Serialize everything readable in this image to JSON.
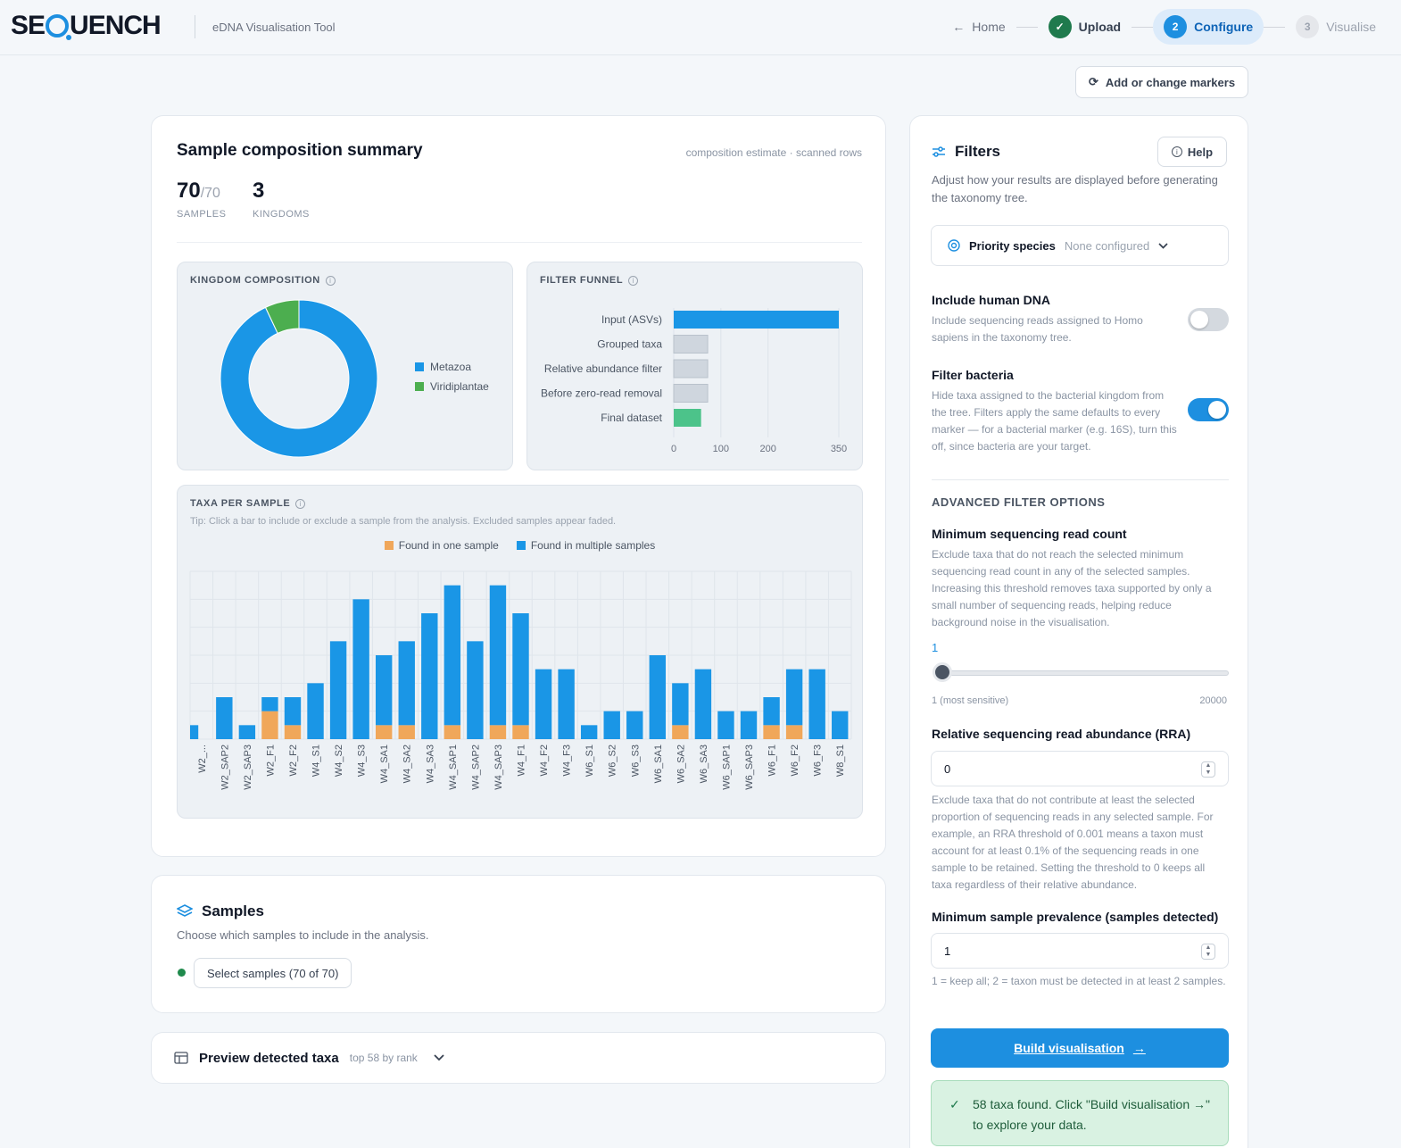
{
  "header": {
    "logo_left": "SE",
    "logo_right": "UENCH",
    "subtitle": "eDNA Visualisation Tool",
    "steps": {
      "home": "Home",
      "upload_num": "✓",
      "upload": "Upload",
      "configure_num": "2",
      "configure": "Configure",
      "visualise_num": "3",
      "visualise": "Visualise"
    },
    "markers_button": "Add or change markers"
  },
  "summary": {
    "title": "Sample composition summary",
    "note": "composition estimate · scanned rows",
    "samples_value": "70",
    "samples_total": "/70",
    "samples_label": "SAMPLES",
    "kingdoms_value": "3",
    "kingdoms_label": "KINGDOMS"
  },
  "kingdom_panel": {
    "title": "KINGDOM COMPOSITION",
    "legend": [
      {
        "name": "Metazoa",
        "color": "#1a96e6"
      },
      {
        "name": "Viridiplantae",
        "color": "#4cae4f"
      }
    ]
  },
  "funnel_panel": {
    "title": "FILTER FUNNEL"
  },
  "taxa_panel": {
    "title": "TAXA PER SAMPLE",
    "tip": "Tip: Click a bar to include or exclude a sample from the analysis. Excluded samples appear faded.",
    "legend_one": "Found in one sample",
    "legend_multi": "Found in multiple samples",
    "color_one": "#f0a75a",
    "color_multi": "#1a96e6"
  },
  "samples": {
    "title": "Samples",
    "subtitle": "Choose which samples to include in the analysis.",
    "select_button": "Select samples (70 of 70)"
  },
  "preview": {
    "title": "Preview detected taxa",
    "subtitle": "top 58 by rank"
  },
  "filters": {
    "title": "Filters",
    "help": "Help",
    "description": "Adjust how your results are displayed before generating the taxonomy tree.",
    "priority_label": "Priority species",
    "priority_value": "None configured",
    "human_title": "Include human DNA",
    "human_desc": "Include sequencing reads assigned to Homo sapiens in the taxonomy tree.",
    "human_on": false,
    "bacteria_title": "Filter bacteria",
    "bacteria_desc": "Hide taxa assigned to the bacterial kingdom from the tree. Filters apply the same defaults to every marker — for a bacterial marker (e.g. 16S), turn this off, since bacteria are your target.",
    "bacteria_on": true,
    "advanced_head": "ADVANCED FILTER OPTIONS",
    "min_reads_title": "Minimum sequencing read count",
    "min_reads_desc": "Exclude taxa that do not reach the selected minimum sequencing read count in any of the selected samples. Increasing this threshold removes taxa supported by only a small number of sequencing reads, helping reduce background noise in the visualisation.",
    "min_reads_value": "1",
    "min_reads_min_label": "1 (most sensitive)",
    "min_reads_max_label": "20000",
    "min_reads_min": 1,
    "min_reads_max": 20000,
    "rra_title": "Relative sequencing read abundance (RRA)",
    "rra_value": "0",
    "rra_desc": "Exclude taxa that do not contribute at least the selected proportion of sequencing reads in any selected sample. For example, an RRA threshold of 0.001 means a taxon must account for at least 0.1% of the sequencing reads in one sample to be retained. Setting the threshold to 0 keeps all taxa regardless of their relative abundance.",
    "prevalence_title": "Minimum sample prevalence (samples detected)",
    "prevalence_value": "1",
    "prevalence_desc": "1 = keep all; 2 = taxon must be detected in at least 2 samples.",
    "build_button": "Build visualisation",
    "success_message": "58 taxa found. Click \"Build visualisation →\" to explore your data."
  },
  "chart_data": [
    {
      "type": "pie",
      "title": "KINGDOM COMPOSITION",
      "labels": [
        "Metazoa",
        "Viridiplantae"
      ],
      "values": [
        93,
        7
      ],
      "colors": [
        "#1a96e6",
        "#4cae4f"
      ]
    },
    {
      "type": "bar",
      "title": "FILTER FUNNEL",
      "orientation": "horizontal",
      "categories": [
        "Input (ASVs)",
        "Grouped taxa",
        "Relative abundance filter",
        "Before zero-read removal",
        "Final dataset"
      ],
      "values": [
        350,
        72,
        72,
        72,
        58
      ],
      "colors": [
        "#1a96e6",
        "#cfd6de",
        "#cfd6de",
        "#cfd6de",
        "#4cc38a"
      ],
      "xticks": [
        0,
        100,
        200,
        350
      ],
      "xlim": [
        0,
        350
      ]
    },
    {
      "type": "bar",
      "title": "TAXA PER SAMPLE",
      "stacked": true,
      "categories": [
        "W2_...",
        "W2_SAP2",
        "W2_SAP3",
        "W2_F1",
        "W2_F2",
        "W4_S1",
        "W4_S2",
        "W4_S3",
        "W4_SA1",
        "W4_SA2",
        "W4_SA3",
        "W4_SAP1",
        "W4_SAP2",
        "W4_SAP3",
        "W4_F1",
        "W4_F2",
        "W4_F3",
        "W6_S1",
        "W6_S2",
        "W6_S3",
        "W6_SA1",
        "W6_SA2",
        "W6_SA3",
        "W6_SAP1",
        "W6_SAP3",
        "W6_F1",
        "W6_F2",
        "W6_F3",
        "W8_S1"
      ],
      "series": [
        {
          "name": "Found in one sample",
          "values": [
            0,
            0,
            0,
            2,
            1,
            0,
            0,
            0,
            1,
            1,
            0,
            1,
            0,
            1,
            1,
            0,
            0,
            0,
            0,
            0,
            0,
            1,
            0,
            0,
            0,
            1,
            1,
            0,
            0
          ]
        },
        {
          "name": "Found in multiple samples",
          "values": [
            1,
            3,
            1,
            1,
            2,
            4,
            7,
            10,
            5,
            6,
            9,
            10,
            7,
            10,
            8,
            5,
            5,
            1,
            2,
            2,
            6,
            3,
            5,
            2,
            2,
            2,
            4,
            5,
            2
          ]
        }
      ],
      "ylim": [
        0,
        12
      ]
    }
  ]
}
